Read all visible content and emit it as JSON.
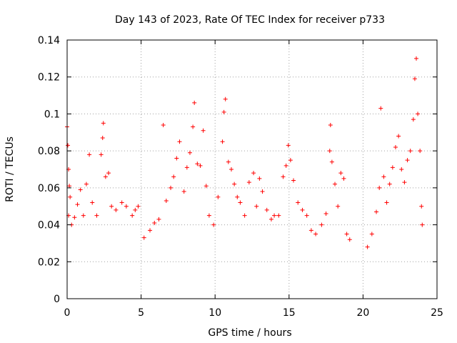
{
  "chart_data": {
    "type": "scatter",
    "title": "Day 143 of 2023, Rate Of TEC Index for receiver p733",
    "xlabel": "GPS time / hours",
    "ylabel": "ROTI / TECUs",
    "xlim": [
      0,
      25
    ],
    "ylim": [
      0,
      0.14
    ],
    "xticks": [
      0,
      5,
      10,
      15,
      20,
      25
    ],
    "xtick_labels": [
      "0",
      "5",
      "10",
      "15",
      "20",
      "25"
    ],
    "yticks": [
      0,
      0.02,
      0.04,
      0.06,
      0.08,
      0.1,
      0.12,
      0.14
    ],
    "ytick_labels": [
      "0",
      "0.02",
      "0.04",
      "0.06",
      "0.08",
      "0.1",
      "0.12",
      "0.14"
    ],
    "grid": true,
    "marker": "+",
    "color": "#ff0000",
    "series": [
      {
        "points": [
          [
            0.0,
            0.093
          ],
          [
            0.05,
            0.083
          ],
          [
            0.1,
            0.07
          ],
          [
            0.15,
            0.061
          ],
          [
            0.2,
            0.055
          ],
          [
            0.1,
            0.045
          ],
          [
            0.3,
            0.04
          ],
          [
            0.5,
            0.044
          ],
          [
            0.7,
            0.051
          ],
          [
            0.9,
            0.059
          ],
          [
            1.1,
            0.045
          ],
          [
            1.3,
            0.062
          ],
          [
            1.5,
            0.078
          ],
          [
            1.7,
            0.052
          ],
          [
            2.0,
            0.045
          ],
          [
            2.3,
            0.078
          ],
          [
            2.4,
            0.087
          ],
          [
            2.45,
            0.095
          ],
          [
            2.6,
            0.066
          ],
          [
            2.8,
            0.068
          ],
          [
            3.0,
            0.05
          ],
          [
            3.3,
            0.048
          ],
          [
            3.7,
            0.052
          ],
          [
            4.0,
            0.05
          ],
          [
            4.4,
            0.045
          ],
          [
            4.6,
            0.048
          ],
          [
            4.8,
            0.05
          ],
          [
            5.2,
            0.033
          ],
          [
            5.6,
            0.037
          ],
          [
            5.9,
            0.041
          ],
          [
            6.2,
            0.043
          ],
          [
            6.5,
            0.094
          ],
          [
            6.7,
            0.053
          ],
          [
            7.0,
            0.06
          ],
          [
            7.2,
            0.066
          ],
          [
            7.4,
            0.076
          ],
          [
            7.6,
            0.085
          ],
          [
            7.9,
            0.058
          ],
          [
            8.1,
            0.071
          ],
          [
            8.3,
            0.079
          ],
          [
            8.5,
            0.093
          ],
          [
            8.6,
            0.106
          ],
          [
            8.8,
            0.073
          ],
          [
            9.0,
            0.072
          ],
          [
            9.2,
            0.091
          ],
          [
            9.4,
            0.061
          ],
          [
            9.6,
            0.045
          ],
          [
            9.9,
            0.04
          ],
          [
            10.2,
            0.055
          ],
          [
            10.5,
            0.085
          ],
          [
            10.6,
            0.101
          ],
          [
            10.7,
            0.108
          ],
          [
            10.9,
            0.074
          ],
          [
            11.1,
            0.07
          ],
          [
            11.3,
            0.062
          ],
          [
            11.5,
            0.055
          ],
          [
            11.7,
            0.052
          ],
          [
            12.0,
            0.045
          ],
          [
            12.3,
            0.063
          ],
          [
            12.6,
            0.068
          ],
          [
            12.8,
            0.05
          ],
          [
            13.0,
            0.065
          ],
          [
            13.2,
            0.058
          ],
          [
            13.5,
            0.048
          ],
          [
            13.8,
            0.043
          ],
          [
            14.0,
            0.045
          ],
          [
            14.3,
            0.045
          ],
          [
            14.6,
            0.066
          ],
          [
            14.8,
            0.072
          ],
          [
            14.95,
            0.083
          ],
          [
            15.1,
            0.075
          ],
          [
            15.3,
            0.064
          ],
          [
            15.6,
            0.052
          ],
          [
            15.9,
            0.048
          ],
          [
            16.2,
            0.045
          ],
          [
            16.5,
            0.037
          ],
          [
            16.8,
            0.035
          ],
          [
            17.2,
            0.04
          ],
          [
            17.5,
            0.046
          ],
          [
            17.75,
            0.08
          ],
          [
            17.8,
            0.094
          ],
          [
            17.9,
            0.074
          ],
          [
            18.1,
            0.062
          ],
          [
            18.3,
            0.05
          ],
          [
            18.5,
            0.068
          ],
          [
            18.7,
            0.065
          ],
          [
            18.9,
            0.035
          ],
          [
            19.1,
            0.032
          ],
          [
            20.3,
            0.028
          ],
          [
            20.6,
            0.035
          ],
          [
            20.9,
            0.047
          ],
          [
            21.1,
            0.06
          ],
          [
            21.2,
            0.103
          ],
          [
            21.4,
            0.066
          ],
          [
            21.6,
            0.052
          ],
          [
            21.8,
            0.062
          ],
          [
            22.0,
            0.071
          ],
          [
            22.2,
            0.082
          ],
          [
            22.4,
            0.088
          ],
          [
            22.6,
            0.07
          ],
          [
            22.8,
            0.063
          ],
          [
            23.0,
            0.075
          ],
          [
            23.2,
            0.08
          ],
          [
            23.4,
            0.097
          ],
          [
            23.5,
            0.119
          ],
          [
            23.6,
            0.13
          ],
          [
            23.7,
            0.1
          ],
          [
            23.85,
            0.08
          ],
          [
            23.95,
            0.05
          ],
          [
            24.0,
            0.04
          ]
        ]
      }
    ]
  }
}
